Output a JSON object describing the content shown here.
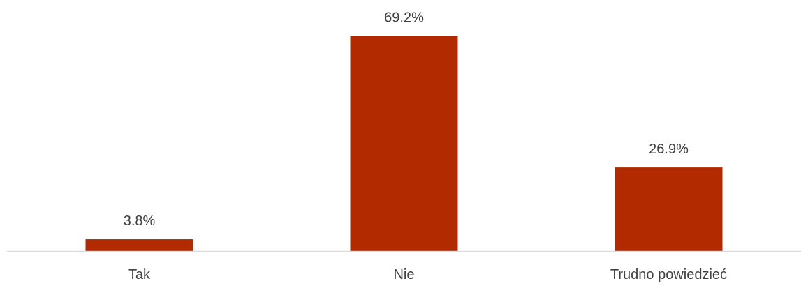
{
  "chart_data": {
    "type": "bar",
    "categories": [
      "Tak",
      "Nie",
      "Trudno powiedzieć"
    ],
    "values": [
      3.8,
      69.2,
      26.9
    ],
    "value_labels": [
      "3.8%",
      "69.2%",
      "26.9%"
    ],
    "unit": "%",
    "ylim": [
      0,
      70
    ],
    "grid": false,
    "legend": "none",
    "bar_color": "#B22A00",
    "axis_color": "#D9D9D9",
    "text_color": "#404040"
  }
}
